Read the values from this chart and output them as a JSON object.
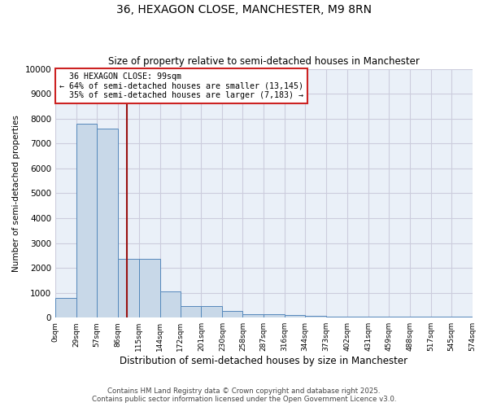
{
  "title": "36, HEXAGON CLOSE, MANCHESTER, M9 8RN",
  "subtitle": "Size of property relative to semi-detached houses in Manchester",
  "xlabel": "Distribution of semi-detached houses by size in Manchester",
  "ylabel": "Number of semi-detached properties",
  "property_size": 99,
  "property_label": "36 HEXAGON CLOSE: 99sqm",
  "pct_smaller": 64,
  "pct_larger": 35,
  "n_smaller": 13145,
  "n_larger": 7183,
  "bin_edges": [
    0,
    29,
    57,
    86,
    115,
    144,
    172,
    201,
    230,
    258,
    287,
    316,
    344,
    373,
    402,
    431,
    459,
    488,
    517,
    545,
    574
  ],
  "bar_heights": [
    800,
    7800,
    7600,
    2350,
    2350,
    1050,
    450,
    450,
    280,
    150,
    125,
    100,
    75,
    50,
    50,
    50,
    50,
    50,
    50,
    50
  ],
  "bar_color": "#c8d8e8",
  "bar_edge_color": "#5588bb",
  "vline_color": "#991111",
  "vline_x": 99,
  "ylim": [
    0,
    10000
  ],
  "yticks": [
    0,
    1000,
    2000,
    3000,
    4000,
    5000,
    6000,
    7000,
    8000,
    9000,
    10000
  ],
  "annotation_box_color": "#cc2222",
  "grid_color": "#ccccdd",
  "bg_color": "#eaf0f8",
  "footer_line1": "Contains HM Land Registry data © Crown copyright and database right 2025.",
  "footer_line2": "Contains public sector information licensed under the Open Government Licence v3.0."
}
